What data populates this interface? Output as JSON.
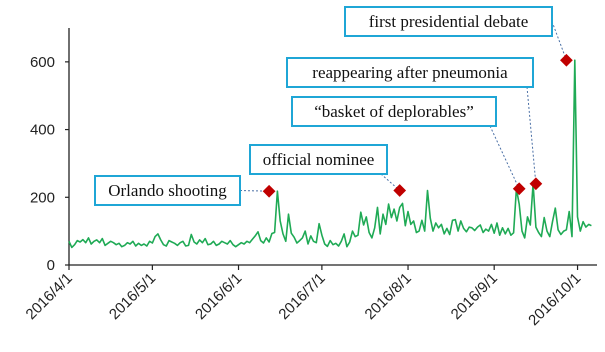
{
  "chart_data": {
    "type": "line",
    "title": "",
    "xlabel": "",
    "ylabel": "",
    "ylim": [
      0,
      700
    ],
    "yticks": [
      0,
      200,
      400,
      600
    ],
    "xlim": [
      "2016-04-01",
      "2016-10-08"
    ],
    "x_tick_labels": [
      "2016/4/1",
      "2016/5/1",
      "2016/6/1",
      "2016/7/1",
      "2016/8/1",
      "2016/9/1",
      "2016/10/1"
    ],
    "x_tick_dates": [
      "2016-04-01",
      "2016-05-01",
      "2016-06-01",
      "2016-07-01",
      "2016-08-01",
      "2016-09-01",
      "2016-10-01"
    ],
    "grid": false,
    "legend": "none",
    "line_color": "#1faa55",
    "marker_color": "#c00000",
    "box_color": "#1fa6d6",
    "series": [
      {
        "x_start": "2016-04-01",
        "x_step_days": 1,
        "values": [
          70,
          52,
          60,
          72,
          68,
          75,
          66,
          80,
          62,
          70,
          74,
          66,
          78,
          58,
          64,
          70,
          66,
          60,
          64,
          54,
          58,
          66,
          62,
          70,
          56,
          64,
          58,
          62,
          56,
          70,
          65,
          84,
          92,
          74,
          60,
          56,
          72,
          68,
          64,
          58,
          66,
          70,
          56,
          58,
          90,
          68,
          62,
          74,
          66,
          78,
          60,
          62,
          70,
          58,
          62,
          70,
          66,
          62,
          72,
          60,
          54,
          60,
          66,
          62,
          70,
          66,
          76,
          86,
          98,
          72,
          65,
          80,
          68,
          93,
          96,
          218,
          130,
          92,
          70,
          150,
          94,
          82,
          65,
          72,
          80,
          100,
          62,
          86,
          70,
          66,
          122,
          88,
          62,
          55,
          72,
          60,
          64,
          56,
          70,
          92,
          54,
          68,
          100,
          84,
          88,
          156,
          118,
          142,
          96,
          80,
          110,
          170,
          92,
          150,
          120,
          180,
          140,
          165,
          130,
          170,
          182,
          116,
          158,
          120,
          130,
          96,
          100,
          132,
          100,
          220,
          138,
          100,
          124,
          110,
          120,
          92,
          108,
          90,
          132,
          134,
          100,
          130,
          108,
          98,
          112,
          110,
          102,
          112,
          118,
          96,
          106,
          100,
          120,
          94,
          124,
          88,
          110,
          92,
          108,
          88,
          95,
          225,
          180,
          100,
          80,
          142,
          118,
          240,
          112,
          96,
          84,
          140,
          100,
          84,
          128,
          168,
          104,
          90,
          100,
          104,
          158,
          84,
          605,
          142,
          100,
          128,
          112,
          120,
          116
        ]
      }
    ],
    "annotations": [
      {
        "label": "Orlando shooting",
        "date": "2016-06-12",
        "value": 218
      },
      {
        "label": "official nominee",
        "date": "2016-07-29",
        "value": 220
      },
      {
        "label": "“basket of deplorables”",
        "date": "2016-09-10",
        "value": 225
      },
      {
        "label": "reappearing after pneumonia",
        "date": "2016-09-16",
        "value": 240
      },
      {
        "label": "first presidential debate",
        "date": "2016-09-27",
        "value": 605
      }
    ]
  }
}
